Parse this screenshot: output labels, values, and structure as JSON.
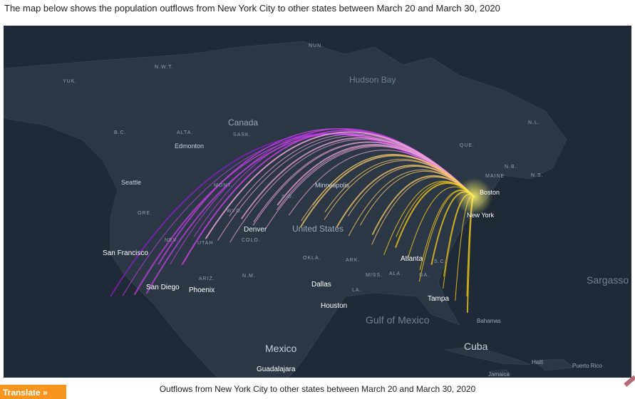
{
  "intro_text": "The map below shows the population outflows from New York City to other states between March 20 and March 30, 2020",
  "caption": "Outflows from New York City to other states between March 20 and March 30, 2020",
  "translate_label": "Translate »",
  "map": {
    "background_color": "#1f2a36",
    "land_color": "#2b3744",
    "arc_colors": [
      "#ffd21a",
      "#f6c86a",
      "#e8a0d8",
      "#c040e0",
      "#8a1fc8"
    ],
    "origin": "New York",
    "labels": {
      "nun": "NUN.",
      "nwt": "N.W.T.",
      "yuk": "YUK.",
      "hudson_bay": "Hudson Bay",
      "canada": "Canada",
      "bc": "B.C.",
      "alta": "ALTA.",
      "sask": "SASK.",
      "edmonton": "Edmonton",
      "seattle": "Seattle",
      "mont": "MONT.",
      "minneapolis": "Minneapolis",
      "nl": "N.L.",
      "que": "QUE.",
      "nb": "N.B.",
      "maine": "MAINE",
      "ns": "N.S.",
      "boston": "Boston",
      "new_york": "New York",
      "ore": "ORE.",
      "wyo": "WYO.",
      "sd": "S.D.",
      "denver": "Denver",
      "united_states": "United States",
      "colo": "COLO.",
      "nev": "NEV.",
      "utah": "UTAH",
      "san_francisco": "San Francisco",
      "okla": "OKLA.",
      "ark": "ARK.",
      "atlanta": "Atlanta",
      "sc": "S.C.",
      "nm": "N.M.",
      "ariz": "ARIZ.",
      "miss": "MISS.",
      "ala": "ALA.",
      "ga": "GA.",
      "san_diego": "San Diego",
      "phoenix": "Phoenix",
      "dallas": "Dallas",
      "la": "LA.",
      "tampa": "Tampa",
      "houston": "Houston",
      "gulf_of_mexico": "Gulf of Mexico",
      "sargasso_sea": "Sargasso Sea",
      "bahamas": "Bahamas",
      "mexico": "Mexico",
      "cuba": "Cuba",
      "guadalajara": "Guadalajara",
      "haiti": "Haiti",
      "puerto_rico": "Puerto Rico",
      "jamaica": "Jamaica"
    }
  }
}
